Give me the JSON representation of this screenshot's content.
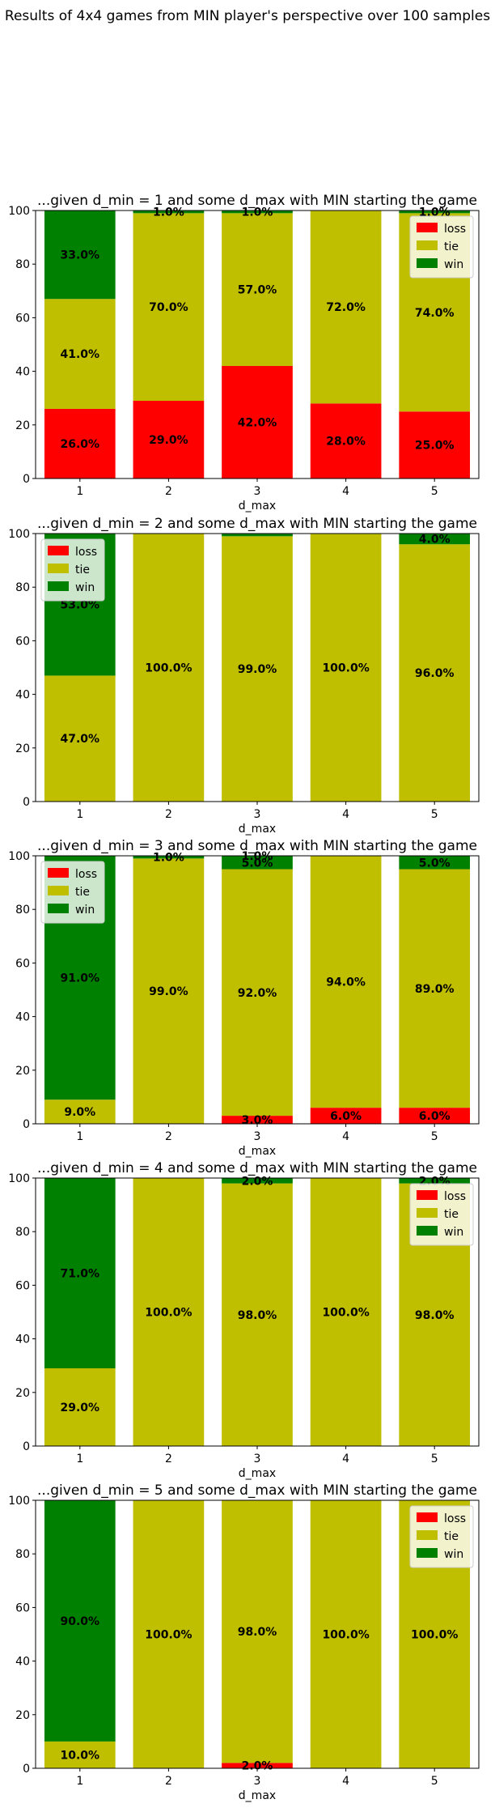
{
  "suptitle": "Results of 4x4 games from MIN player's perspective over 100 samples",
  "chart_data": [
    {
      "type": "bar",
      "stacked": true,
      "title": "...given d_min = 1 and some d_max with MIN starting the game",
      "xlabel": "d_max",
      "ylabel": "",
      "categories": [
        "1",
        "2",
        "3",
        "4",
        "5"
      ],
      "ylim": [
        0,
        100
      ],
      "yticks": [
        "0",
        "20",
        "40",
        "60",
        "80",
        "100"
      ],
      "legend_position": "top-right",
      "series": [
        {
          "name": "loss",
          "color": "#ff0000",
          "values": [
            26,
            29,
            42,
            28,
            25
          ],
          "labels": [
            "26.0%",
            "29.0%",
            "42.0%",
            "28.0%",
            "25.0%"
          ]
        },
        {
          "name": "tie",
          "color": "#bfbf00",
          "values": [
            41,
            70,
            57,
            72,
            74
          ],
          "labels": [
            "41.0%",
            "70.0%",
            "57.0%",
            "72.0%",
            "74.0%"
          ]
        },
        {
          "name": "win",
          "color": "#008000",
          "values": [
            33,
            1,
            1,
            0,
            1
          ],
          "labels": [
            "33.0%",
            "1.0%",
            "1.0%",
            "",
            "1.0%"
          ]
        }
      ]
    },
    {
      "type": "bar",
      "stacked": true,
      "title": "...given d_min = 2 and some d_max with MIN starting the game",
      "xlabel": "d_max",
      "ylabel": "",
      "categories": [
        "1",
        "2",
        "3",
        "4",
        "5"
      ],
      "ylim": [
        0,
        100
      ],
      "yticks": [
        "0",
        "20",
        "40",
        "60",
        "80",
        "100"
      ],
      "legend_position": "top-left",
      "series": [
        {
          "name": "loss",
          "color": "#ff0000",
          "values": [
            0,
            0,
            0,
            0,
            0
          ],
          "labels": [
            "",
            "",
            "",
            "",
            ""
          ]
        },
        {
          "name": "tie",
          "color": "#bfbf00",
          "values": [
            47,
            100,
            99,
            100,
            96
          ],
          "labels": [
            "47.0%",
            "100.0%",
            "99.0%",
            "100.0%",
            "96.0%"
          ]
        },
        {
          "name": "win",
          "color": "#008000",
          "values": [
            53,
            0,
            1,
            0,
            4
          ],
          "labels": [
            "53.0%",
            "",
            "",
            "",
            "4.0%"
          ]
        }
      ]
    },
    {
      "type": "bar",
      "stacked": true,
      "title": "...given d_min = 3 and some d_max with MIN starting the game",
      "xlabel": "d_max",
      "ylabel": "",
      "categories": [
        "1",
        "2",
        "3",
        "4",
        "5"
      ],
      "ylim": [
        0,
        100
      ],
      "yticks": [
        "0",
        "20",
        "40",
        "60",
        "80",
        "100"
      ],
      "legend_position": "top-left",
      "series": [
        {
          "name": "loss",
          "color": "#ff0000",
          "values": [
            0,
            0,
            3,
            6,
            6
          ],
          "labels": [
            "",
            "",
            "3.0%",
            "6.0%",
            "6.0%"
          ]
        },
        {
          "name": "tie",
          "color": "#bfbf00",
          "values": [
            9,
            99,
            92,
            94,
            89
          ],
          "labels": [
            "9.0%",
            "99.0%",
            "92.0%",
            "94.0%",
            "89.0%"
          ]
        },
        {
          "name": "win",
          "color": "#008000",
          "values": [
            91,
            1,
            5,
            0,
            5
          ],
          "labels": [
            "91.0%",
            "1.0%",
            "5.0%",
            "",
            "5.0%"
          ]
        }
      ],
      "extra_labels": [
        {
          "category_index": 2,
          "y": 100,
          "text": "1.0%"
        }
      ]
    },
    {
      "type": "bar",
      "stacked": true,
      "title": "...given d_min = 4 and some d_max with MIN starting the game",
      "xlabel": "d_max",
      "ylabel": "",
      "categories": [
        "1",
        "2",
        "3",
        "4",
        "5"
      ],
      "ylim": [
        0,
        100
      ],
      "yticks": [
        "0",
        "20",
        "40",
        "60",
        "80",
        "100"
      ],
      "legend_position": "top-right",
      "series": [
        {
          "name": "loss",
          "color": "#ff0000",
          "values": [
            0,
            0,
            0,
            0,
            0
          ],
          "labels": [
            "",
            "",
            "",
            "",
            ""
          ]
        },
        {
          "name": "tie",
          "color": "#bfbf00",
          "values": [
            29,
            100,
            98,
            100,
            98
          ],
          "labels": [
            "29.0%",
            "100.0%",
            "98.0%",
            "100.0%",
            "98.0%"
          ]
        },
        {
          "name": "win",
          "color": "#008000",
          "values": [
            71,
            0,
            2,
            0,
            2
          ],
          "labels": [
            "71.0%",
            "",
            "2.0%",
            "",
            "2.0%"
          ]
        }
      ]
    },
    {
      "type": "bar",
      "stacked": true,
      "title": "...given d_min = 5 and some d_max with MIN starting the game",
      "xlabel": "d_max",
      "ylabel": "",
      "categories": [
        "1",
        "2",
        "3",
        "4",
        "5"
      ],
      "ylim": [
        0,
        100
      ],
      "yticks": [
        "0",
        "20",
        "40",
        "60",
        "80",
        "100"
      ],
      "legend_position": "top-right",
      "series": [
        {
          "name": "loss",
          "color": "#ff0000",
          "values": [
            0,
            0,
            2,
            0,
            0
          ],
          "labels": [
            "",
            "",
            "2.0%",
            "",
            ""
          ]
        },
        {
          "name": "tie",
          "color": "#bfbf00",
          "values": [
            10,
            100,
            98,
            100,
            100
          ],
          "labels": [
            "10.0%",
            "100.0%",
            "98.0%",
            "100.0%",
            "100.0%"
          ]
        },
        {
          "name": "win",
          "color": "#008000",
          "values": [
            90,
            0,
            0,
            0,
            0
          ],
          "labels": [
            "90.0%",
            "",
            "",
            "",
            ""
          ]
        }
      ]
    }
  ]
}
